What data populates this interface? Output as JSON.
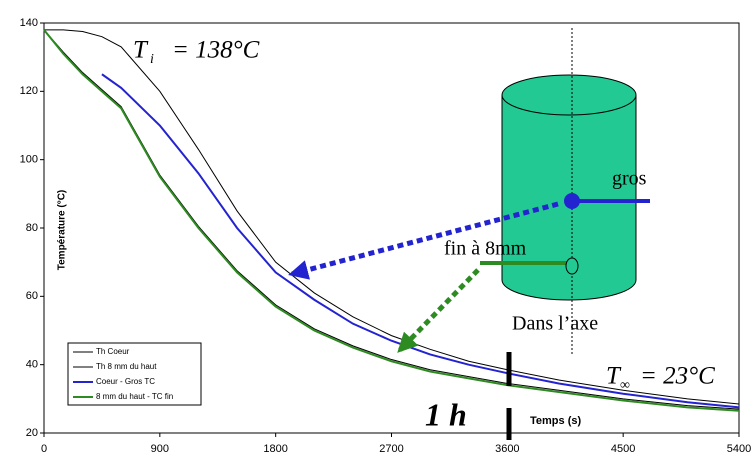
{
  "chart_data": {
    "type": "line",
    "x_label": "Temps (s)",
    "y_label": "Température (°C)",
    "x": [
      0,
      150,
      300,
      450,
      600,
      900,
      1200,
      1500,
      1800,
      2100,
      2400,
      2700,
      3000,
      3300,
      3600,
      4000,
      4500,
      5000,
      5400
    ],
    "series": [
      {
        "name": "Th Coeur",
        "color": "#000000",
        "values": [
          138,
          138,
          137.5,
          136,
          133,
          120,
          103,
          85,
          70,
          61,
          54,
          48.5,
          44.5,
          41,
          38.5,
          35.5,
          32.5,
          30,
          28.5
        ]
      },
      {
        "name": "Th 8 mm du haut",
        "color": "#000000",
        "values": [
          138,
          131.5,
          125.5,
          120.5,
          115.5,
          95.5,
          80.5,
          67.5,
          57.5,
          50.5,
          45.5,
          41.5,
          38.5,
          36.5,
          34.5,
          32.5,
          30,
          28,
          27
        ]
      },
      {
        "name": "Coeur - Gros TC",
        "color": "#2323d0",
        "values": [
          null,
          null,
          null,
          125,
          121,
          110,
          96,
          80,
          67,
          59,
          52,
          47,
          43,
          40,
          37.5,
          34.5,
          31.5,
          29,
          27.5
        ]
      },
      {
        "name": "8 mm du haut - TC fin",
        "color": "#2e8b22",
        "values": [
          138,
          131,
          125,
          120,
          115,
          95,
          80,
          67,
          57,
          50,
          45,
          41,
          38,
          36,
          34,
          32,
          29.5,
          27.5,
          26.5
        ]
      }
    ],
    "xlim": [
      0,
      5400
    ],
    "xticks": [
      0,
      900,
      1800,
      2700,
      3600,
      4500,
      5400
    ],
    "ylim": [
      20,
      140
    ],
    "yticks": [
      20,
      40,
      60,
      80,
      100,
      120,
      140
    ],
    "annotations": {
      "ti_symbol": "T",
      "ti_sub": "i",
      "ti_value": "= 138°C",
      "tinf_symbol": "T",
      "tinf_sub": "∞",
      "tinf_value": "= 23°C",
      "hour": "1 h",
      "gros": "gros",
      "fin": "fin à 8mm",
      "axe": "Dans l’axe"
    }
  }
}
